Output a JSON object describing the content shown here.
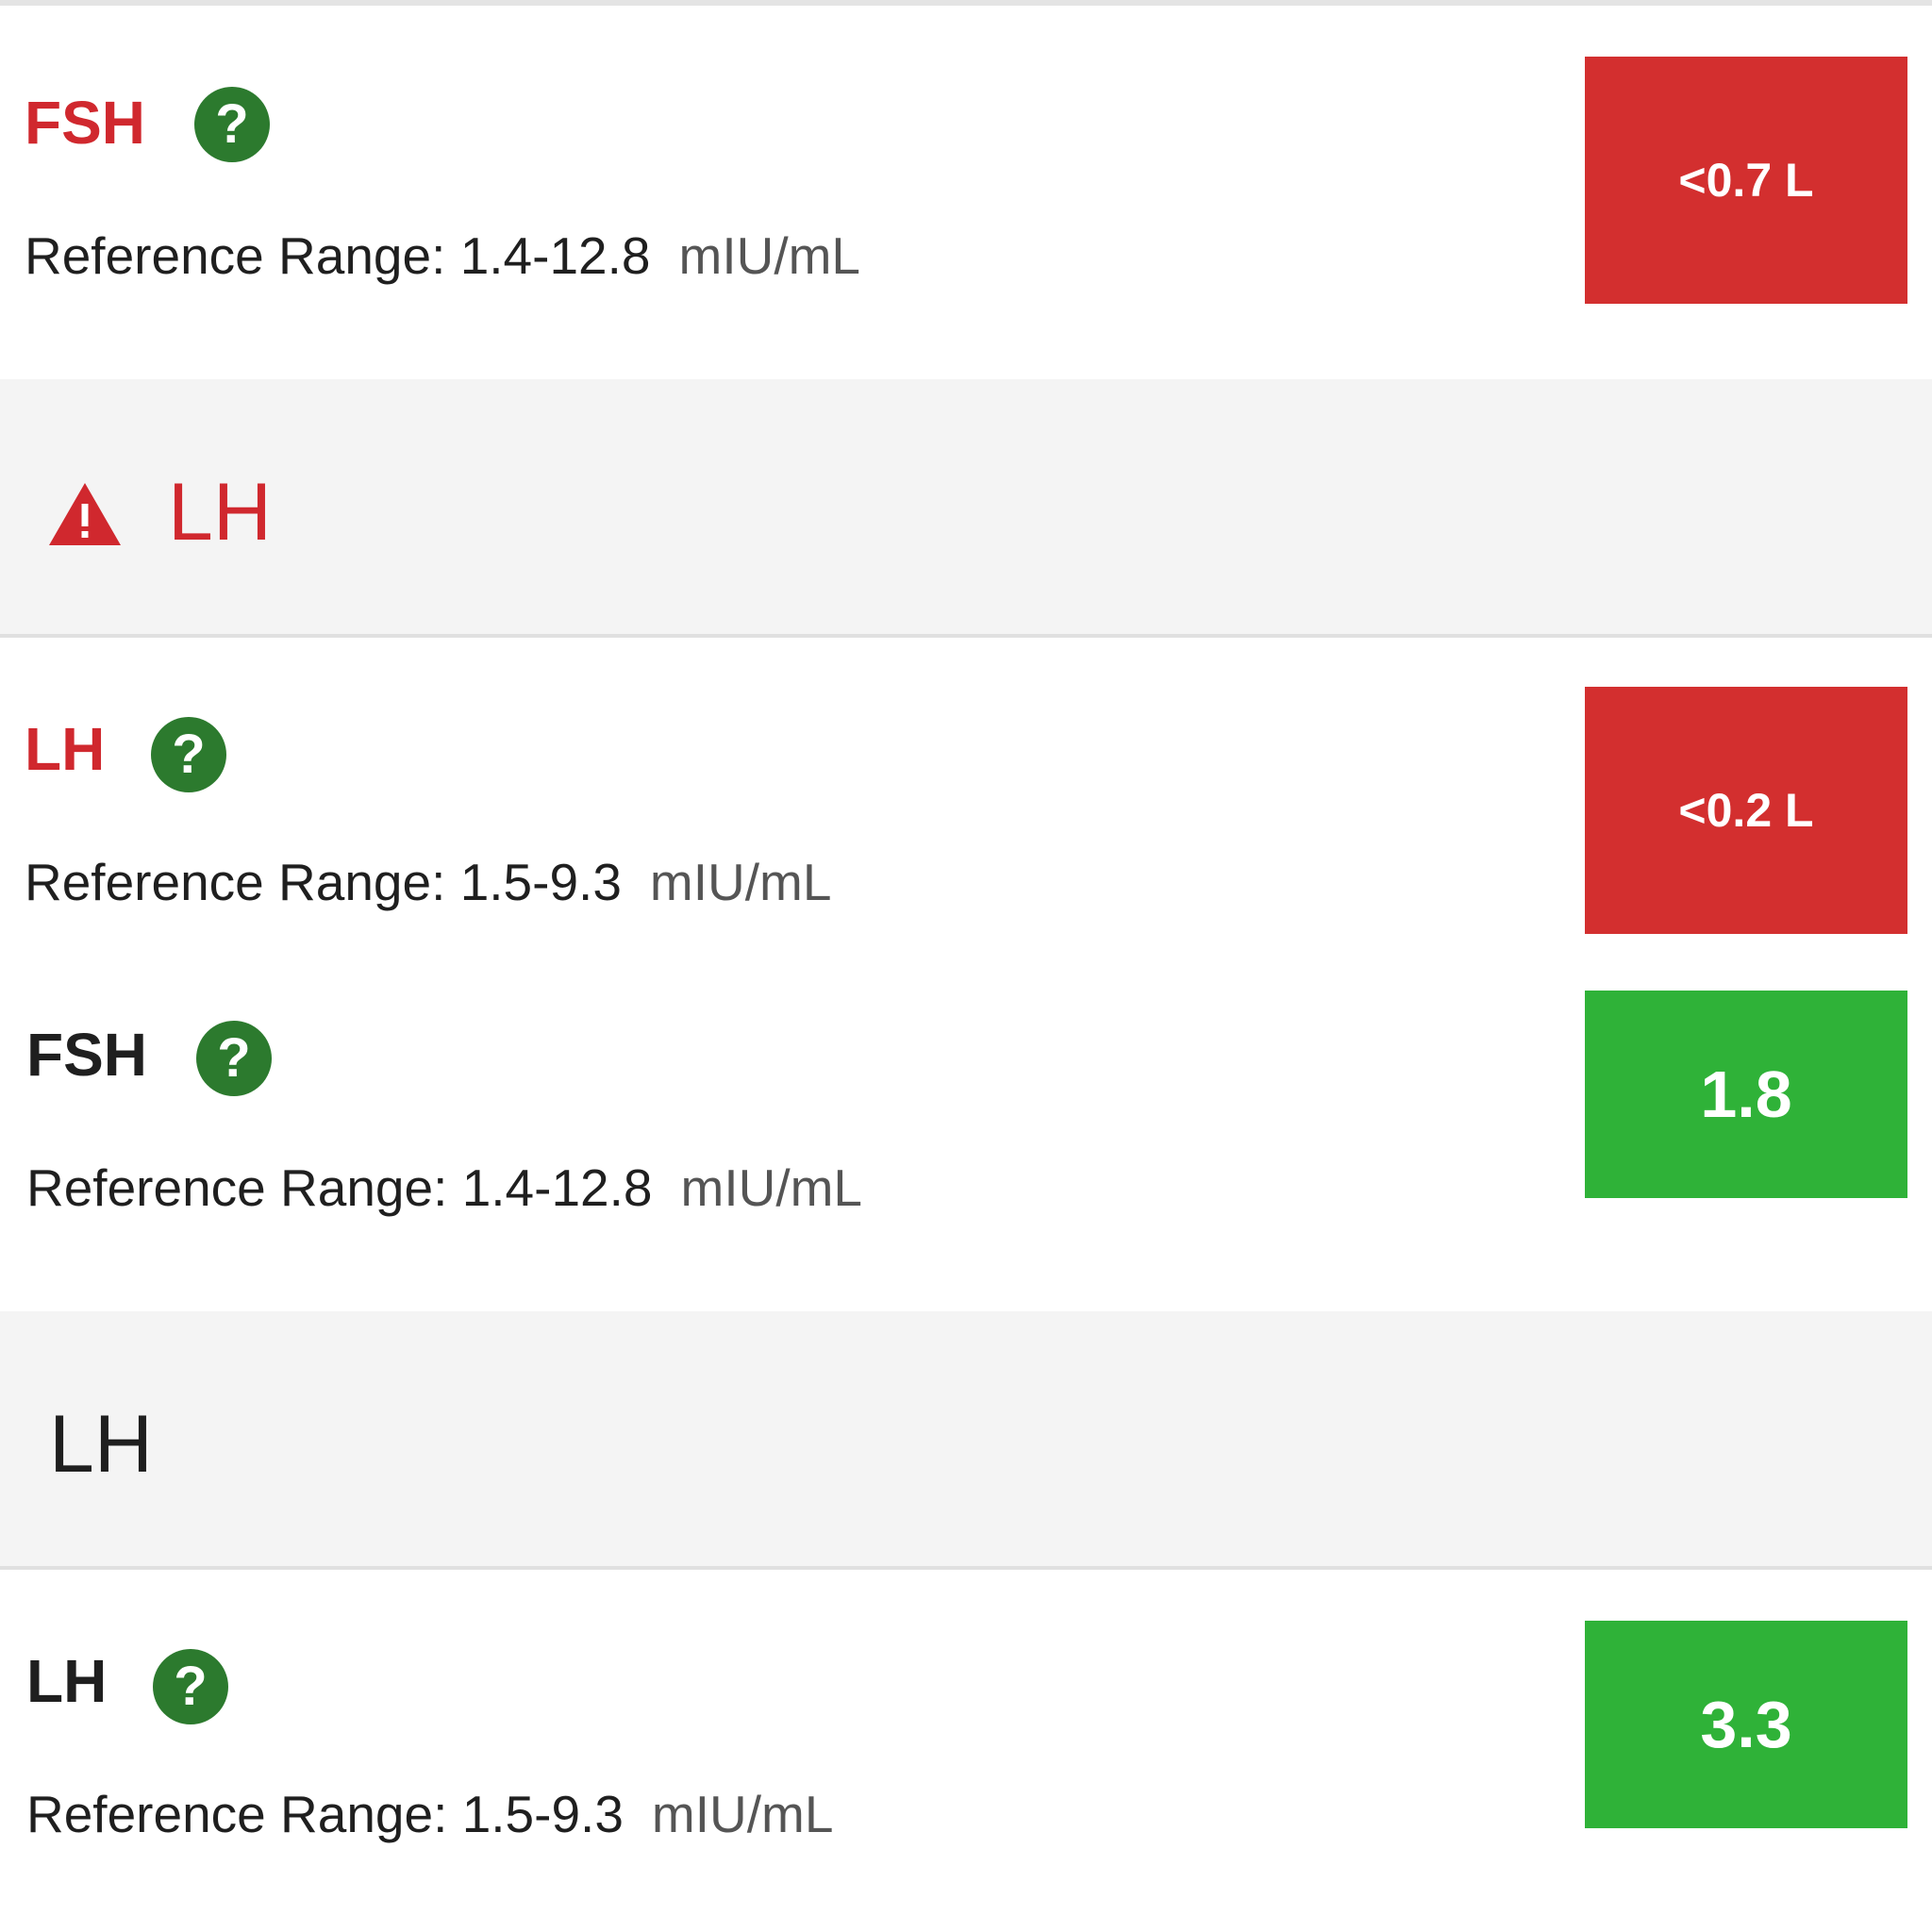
{
  "results": [
    {
      "name": "FSH",
      "reference_label": "Reference Range:",
      "reference_range": "1.4-12.8",
      "unit": "mIU/mL",
      "value": "<0.7 L"
    },
    {
      "name": "LH",
      "reference_label": "Reference Range:",
      "reference_range": "1.5-9.3",
      "unit": "mIU/mL",
      "value": "<0.2 L"
    },
    {
      "name": "FSH",
      "reference_label": "Reference Range:",
      "reference_range": "1.4-12.8",
      "unit": "mIU/mL",
      "value": "1.8"
    },
    {
      "name": "LH",
      "reference_label": "Reference Range:",
      "reference_range": "1.5-9.3",
      "unit": "mIU/mL",
      "value": "3.3"
    }
  ],
  "sections": [
    {
      "title": "LH",
      "flag": "abnormal",
      "icon": "warning-icon"
    },
    {
      "title": "LH",
      "flag": "normal"
    }
  ],
  "help_icon_glyph": "?",
  "colors": {
    "abnormal_text": "#d0282e",
    "low_value_bg": "#d32f2f",
    "normal_value_bg": "#2fb238",
    "help_icon_bg": "#2c7a2e",
    "section_bg": "#f4f4f4"
  }
}
